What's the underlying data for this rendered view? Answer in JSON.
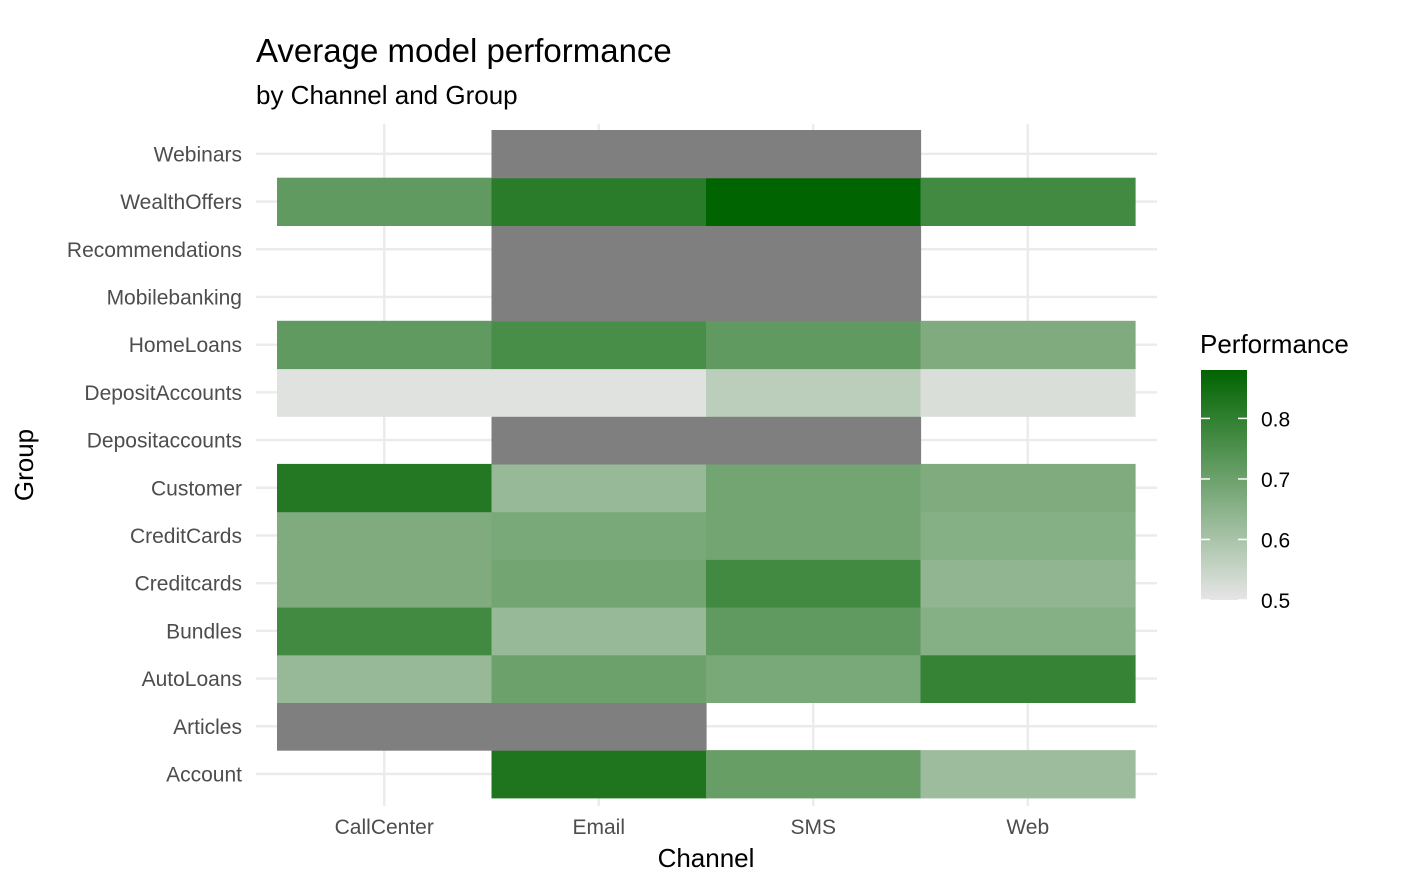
{
  "chart_data": {
    "type": "heatmap",
    "title": "Average model performance",
    "subtitle": "by Channel and Group",
    "xlabel": "Channel",
    "ylabel": "Group",
    "x_categories": [
      "CallCenter",
      "Email",
      "SMS",
      "Web"
    ],
    "y_categories": [
      "Account",
      "Articles",
      "AutoLoans",
      "Bundles",
      "Creditcards",
      "CreditCards",
      "Customer",
      "Depositaccounts",
      "DepositAccounts",
      "HomeLoans",
      "Mobilebanking",
      "Recommendations",
      "WealthOffers",
      "Webinars"
    ],
    "values": [
      [
        null,
        0.83,
        0.71,
        0.62
      ],
      [
        "NA",
        "NA",
        null,
        null
      ],
      [
        0.63,
        0.7,
        0.68,
        0.79
      ],
      [
        0.77,
        0.63,
        0.72,
        0.66
      ],
      [
        0.67,
        0.69,
        0.77,
        0.64
      ],
      [
        0.67,
        0.68,
        0.69,
        0.66
      ],
      [
        0.82,
        0.63,
        0.69,
        0.67
      ],
      [
        null,
        "NA",
        "NA",
        null
      ],
      [
        0.51,
        0.51,
        0.57,
        0.52
      ],
      [
        0.72,
        0.76,
        0.72,
        0.67
      ],
      [
        null,
        "NA",
        "NA",
        null
      ],
      [
        null,
        "NA",
        "NA",
        null
      ],
      [
        0.72,
        0.81,
        0.88,
        0.77
      ],
      [
        null,
        "NA",
        "NA",
        null
      ]
    ],
    "na_color": "#7f7f7f",
    "color_scale": {
      "low_color": "#e5e5e5",
      "high_color": "#006400",
      "min": 0.5,
      "max": 0.88
    },
    "legend": {
      "title": "Performance",
      "ticks": [
        0.5,
        0.6,
        0.7,
        0.8
      ],
      "tick_labels": [
        "0.5",
        "0.6",
        "0.7",
        "0.8"
      ],
      "position": "right"
    },
    "grid": true
  }
}
